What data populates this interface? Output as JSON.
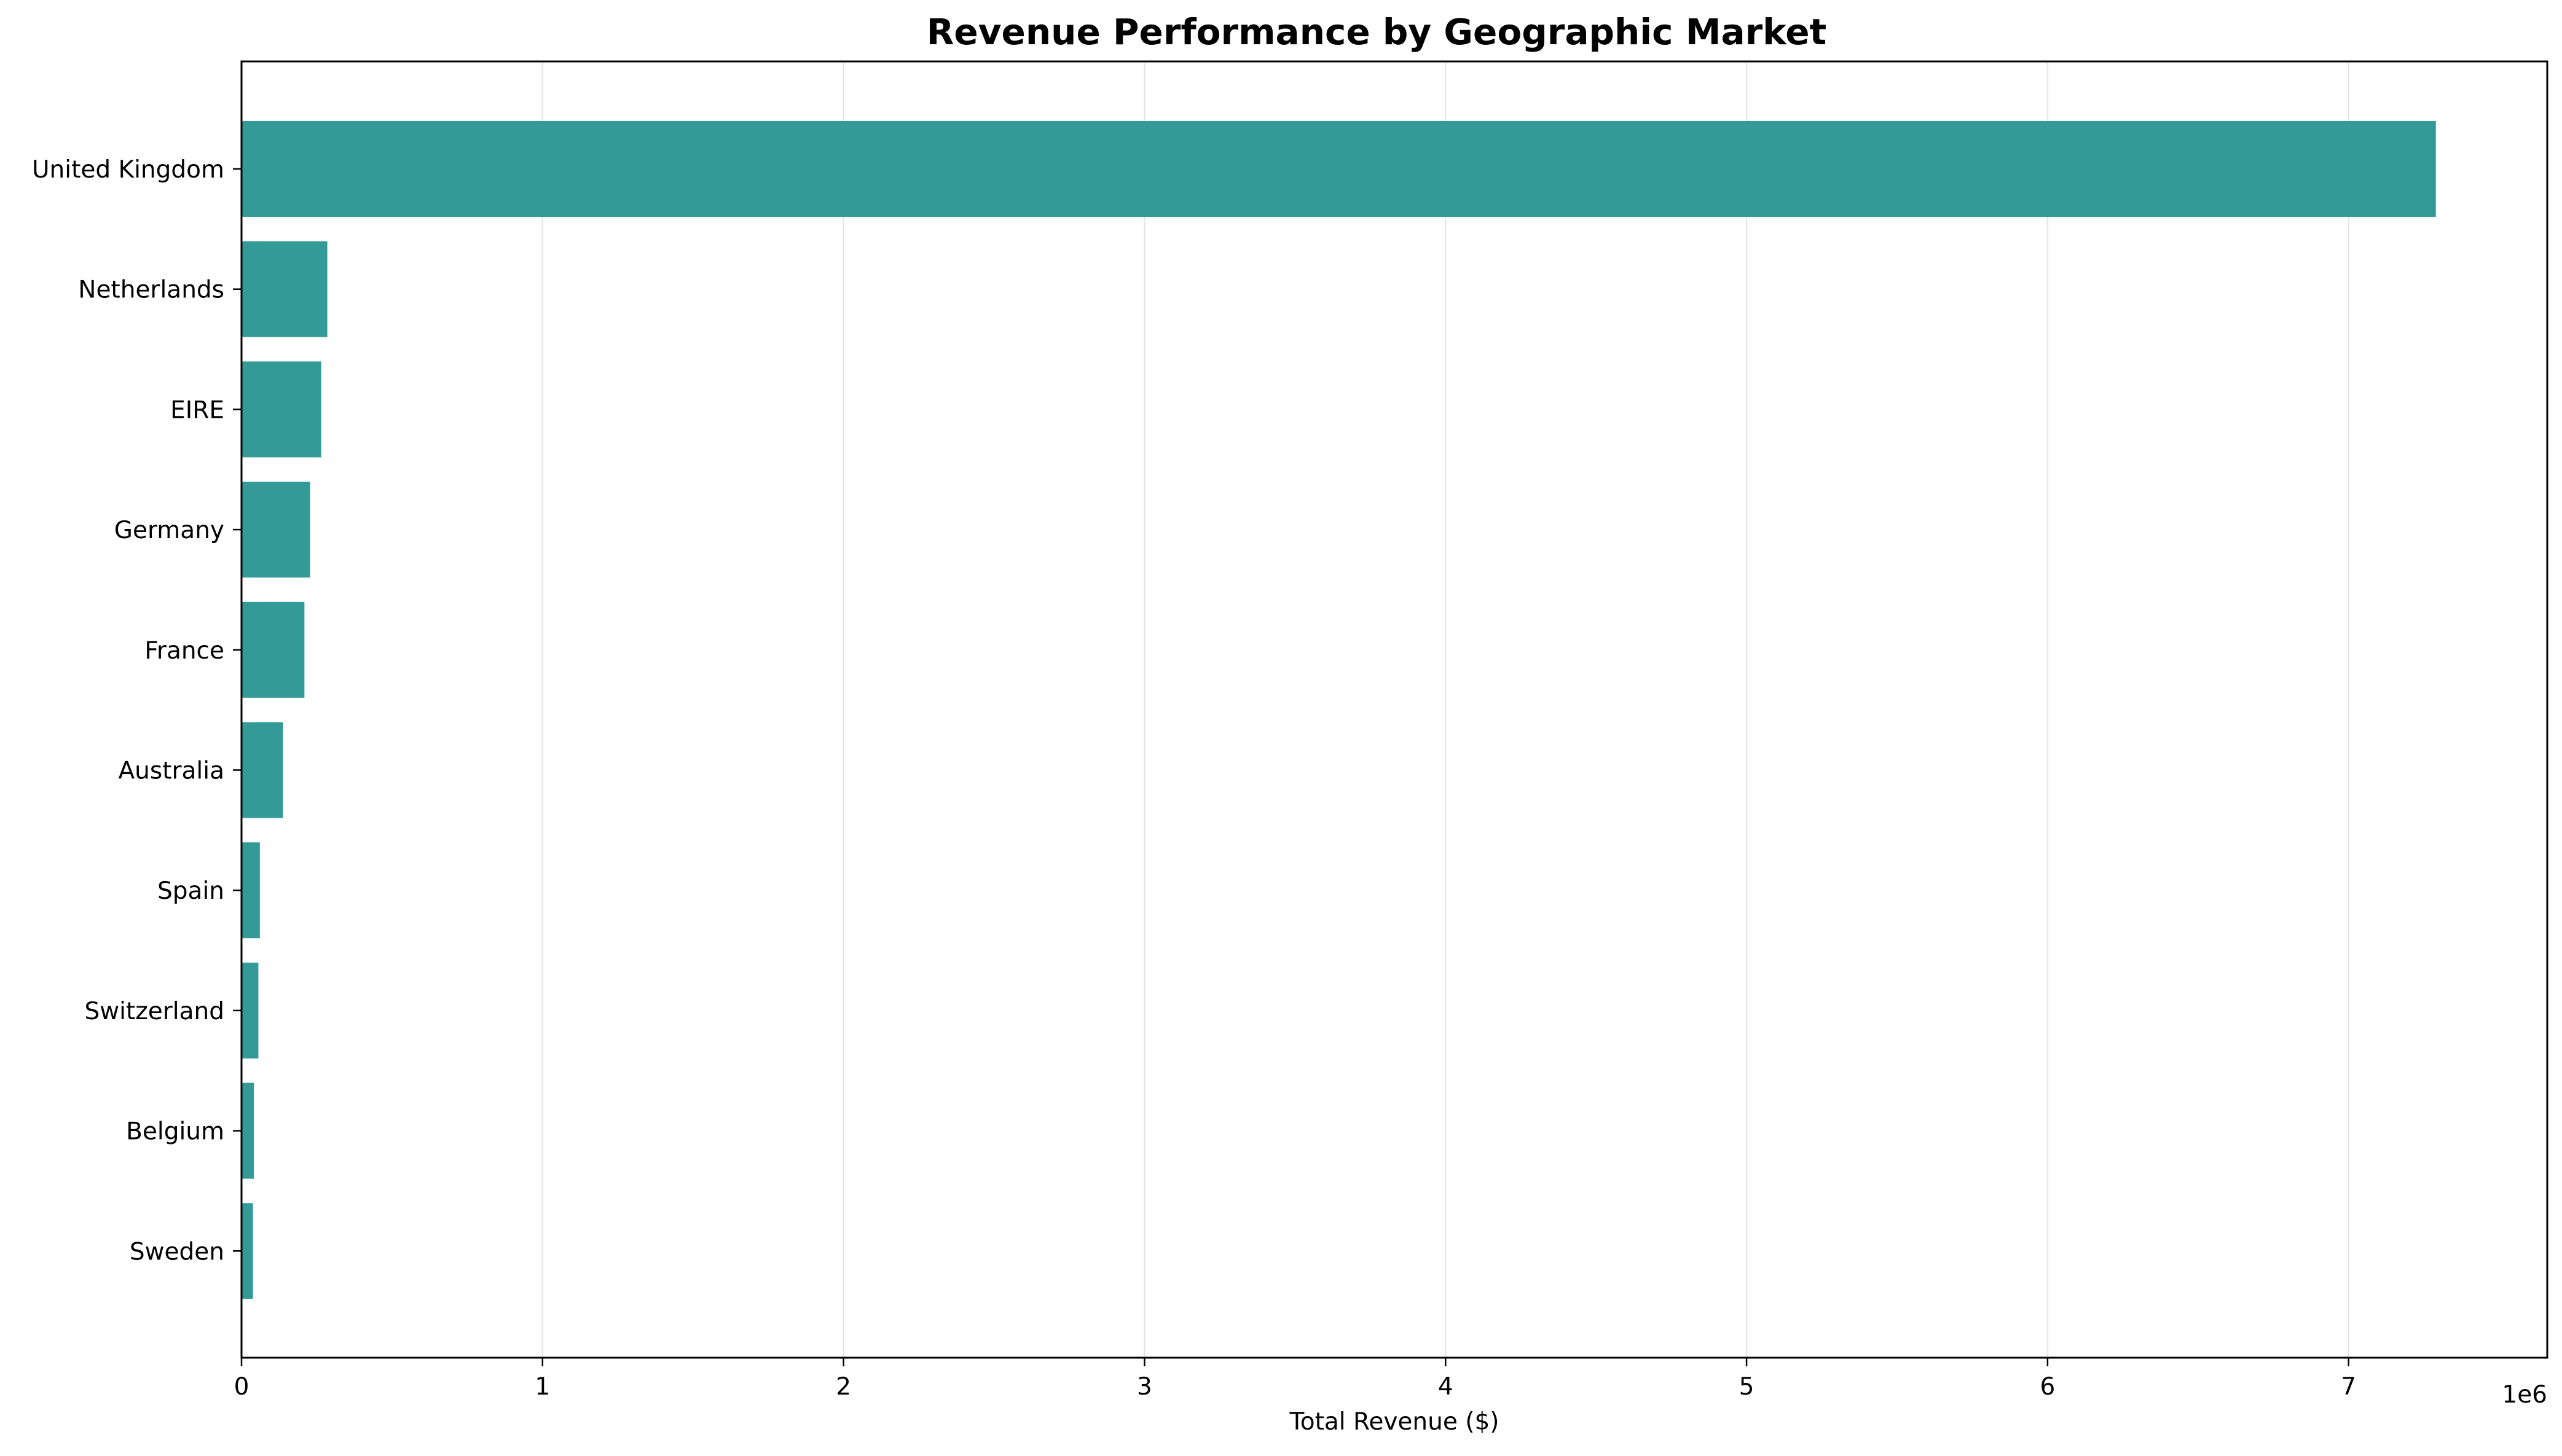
{
  "chart_data": {
    "type": "bar",
    "orientation": "horizontal",
    "title": "Revenue Performance by Geographic Market",
    "xlabel": "Total Revenue ($)",
    "ylabel": "",
    "x_scale_label": "1e6",
    "xlim": [
      0,
      7.66
    ],
    "xticks": [
      0,
      1,
      2,
      3,
      4,
      5,
      6,
      7
    ],
    "xtick_labels": [
      "0",
      "1",
      "2",
      "3",
      "4",
      "5",
      "6",
      "7"
    ],
    "grid": "x-axis vertical gridlines",
    "categories": [
      "United Kingdom",
      "Netherlands",
      "EIRE",
      "Germany",
      "France",
      "Australia",
      "Spain",
      "Switzerland",
      "Belgium",
      "Sweden"
    ],
    "values": [
      7.29,
      0.285,
      0.265,
      0.228,
      0.209,
      0.138,
      0.061,
      0.056,
      0.041,
      0.038
    ],
    "colors": {
      "bar": "#349a97",
      "grid": "#e6e6e6",
      "axis": "#000000"
    }
  }
}
